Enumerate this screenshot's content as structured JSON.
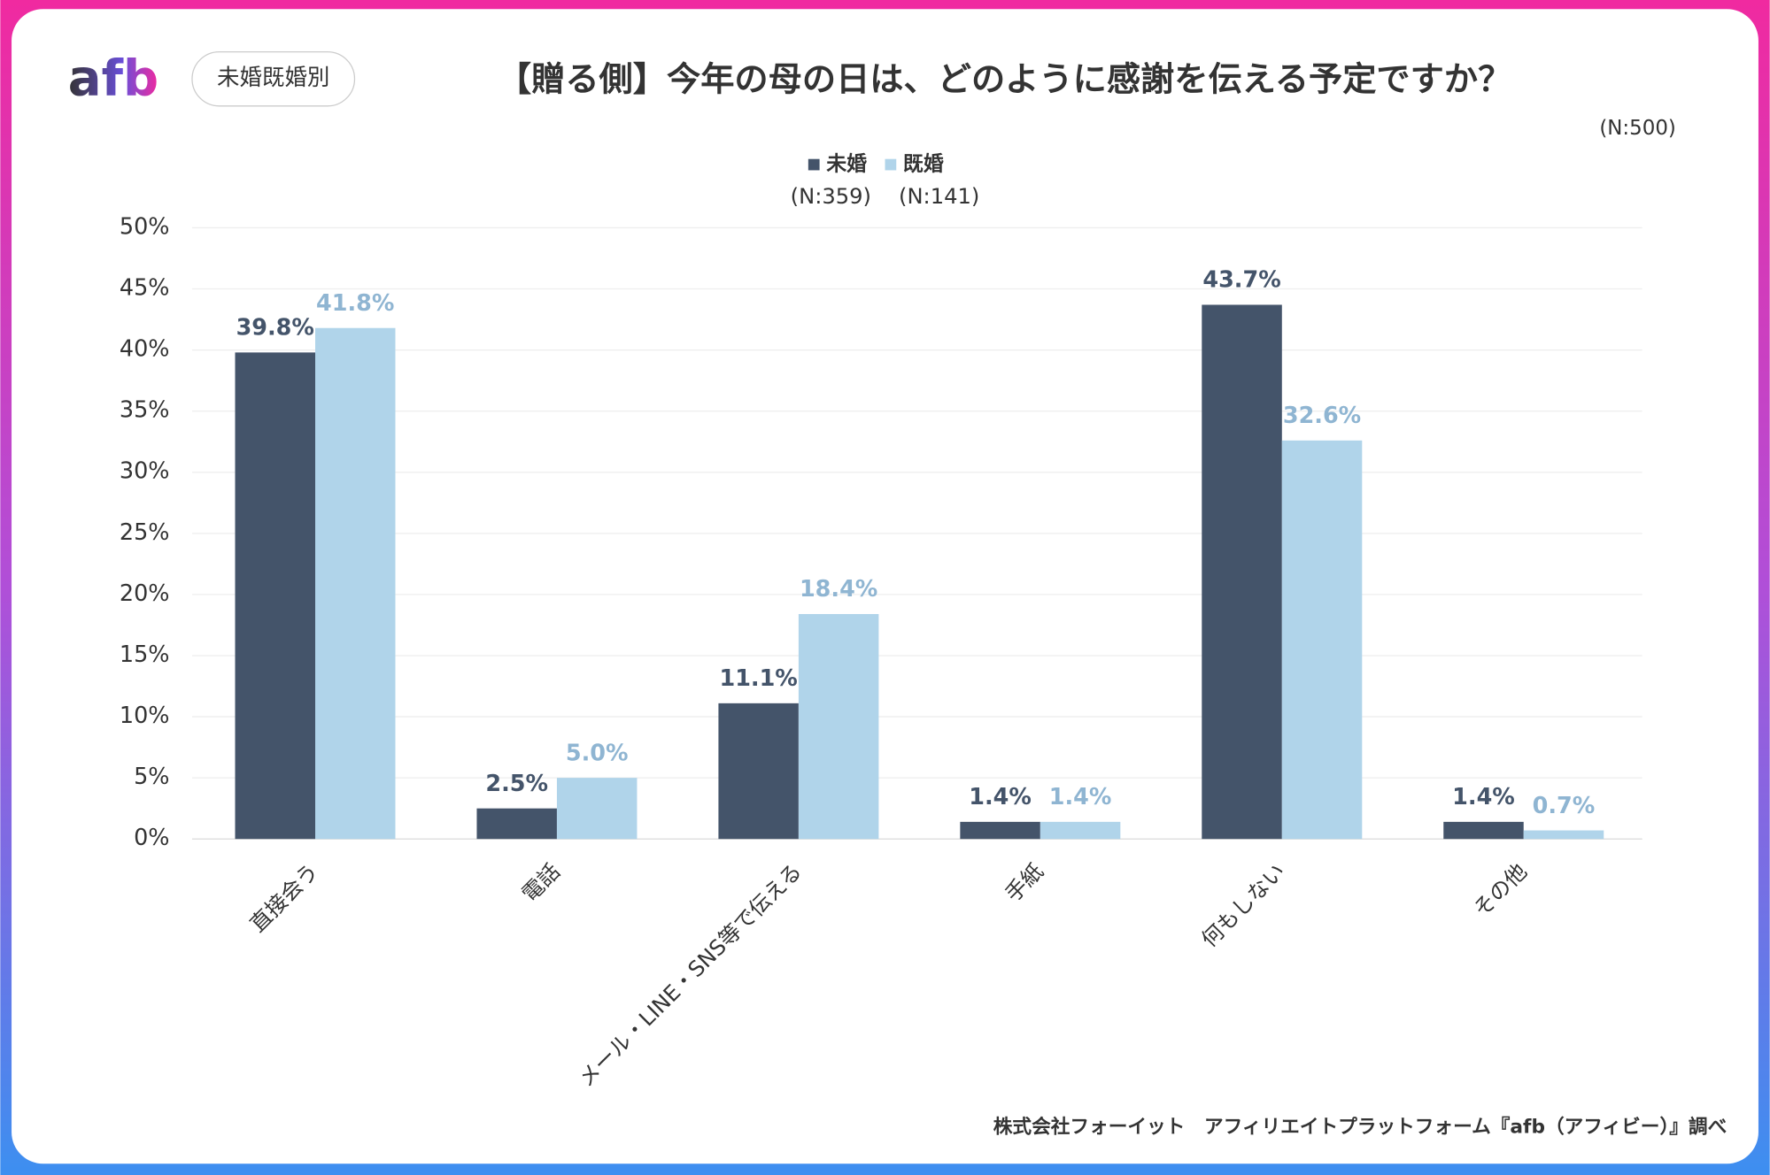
{
  "logo": "afb",
  "badge": "未婚既婚別",
  "chart_data": {
    "type": "bar",
    "title": "【贈る側】今年の母の日は、どのように感謝を伝える予定ですか？",
    "sample_size": "(N:500)",
    "categories": [
      "直接会う",
      "電話",
      "メール・LINE・SNS等で伝える",
      "手紙",
      "何もしない",
      "その他"
    ],
    "series": [
      {
        "name": "未婚",
        "sample_size": "(N:359)",
        "color": "#44546a",
        "label_color": "#44546a",
        "values": [
          39.8,
          2.5,
          11.1,
          1.4,
          43.7,
          1.4
        ],
        "value_labels": [
          "39.8%",
          "2.5%",
          "11.1%",
          "1.4%",
          "43.7%",
          "1.4%"
        ]
      },
      {
        "name": "既婚",
        "sample_size": "(N:141)",
        "color": "#b0d4ea",
        "label_color": "#8fb5d2",
        "values": [
          41.8,
          5.0,
          18.4,
          1.4,
          32.6,
          0.7
        ],
        "value_labels": [
          "41.8%",
          "5.0%",
          "18.4%",
          "1.4%",
          "32.6%",
          "0.7%"
        ]
      }
    ],
    "ylim": [
      0,
      50
    ],
    "yticks": [
      {
        "value": 0,
        "label": "0%"
      },
      {
        "value": 5,
        "label": "5%"
      },
      {
        "value": 10,
        "label": "10%"
      },
      {
        "value": 15,
        "label": "15%"
      },
      {
        "value": 20,
        "label": "20%"
      },
      {
        "value": 25,
        "label": "25%"
      },
      {
        "value": 30,
        "label": "30%"
      },
      {
        "value": 35,
        "label": "35%"
      },
      {
        "value": 40,
        "label": "40%"
      },
      {
        "value": 45,
        "label": "45%"
      },
      {
        "value": 50,
        "label": "50%"
      }
    ],
    "grid": true,
    "source": "株式会社フォーイット　アフィリエイトプラットフォーム『afb（アフィビー）』調べ"
  }
}
